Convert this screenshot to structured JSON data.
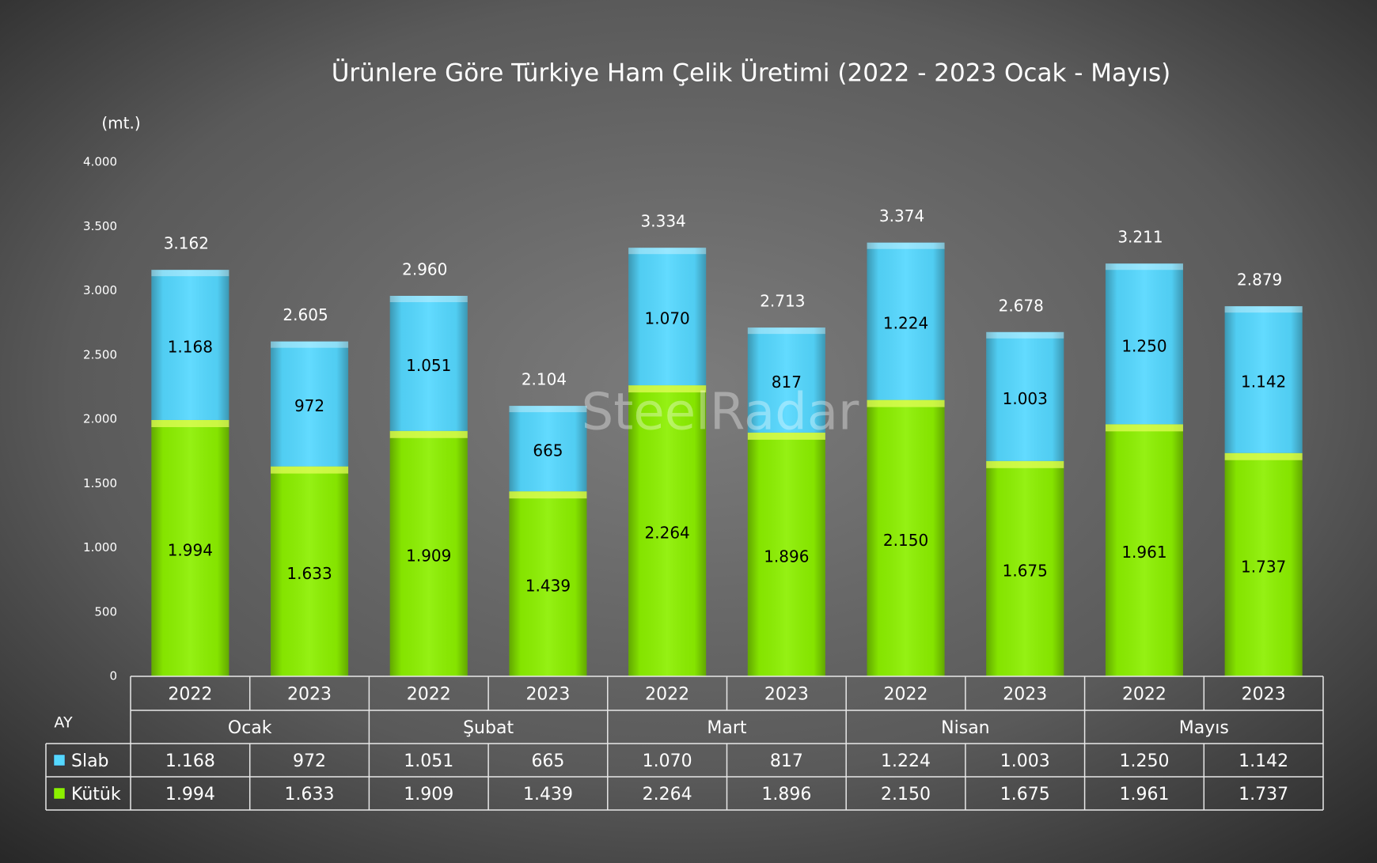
{
  "chart_data": {
    "type": "stacked_bar",
    "title": "Ürünlere Göre Türkiye Ham Çelik Üretimi (2022 - 2023 Ocak - Mayıs)",
    "y_label": "(mt.)",
    "watermark": "SteelRadar",
    "table_header": "AY",
    "categories": [
      "2022",
      "2023",
      "2022",
      "2023",
      "2022",
      "2023",
      "2022",
      "2023",
      "2022",
      "2023"
    ],
    "groups": [
      "Ocak",
      "Şubat",
      "Mart",
      "Nisan",
      "Mayıs"
    ],
    "series": [
      {
        "name": "Slab",
        "color": "#55d8ff",
        "values": [
          1168,
          972,
          1051,
          665,
          1070,
          817,
          1224,
          1003,
          1250,
          1142
        ],
        "value_labels": [
          "1.168",
          "972",
          "1.051",
          "665",
          "1.070",
          "817",
          "1.224",
          "1.003",
          "1.250",
          "1.142"
        ]
      },
      {
        "name": "Kütük",
        "color": "#8cf000",
        "values": [
          1994,
          1633,
          1909,
          1439,
          2264,
          1896,
          2150,
          1675,
          1961,
          1737
        ],
        "value_labels": [
          "1.994",
          "1.633",
          "1.909",
          "1.439",
          "2.264",
          "1.896",
          "2.150",
          "1.675",
          "1.961",
          "1.737"
        ]
      }
    ],
    "totals": [
      {
        "value": 3162,
        "label": "3.162"
      },
      {
        "value": 2605,
        "label": "2.605"
      },
      {
        "value": 2960,
        "label": "2.960"
      },
      {
        "value": 2104,
        "label": "2.104"
      },
      {
        "value": 3334,
        "label": "3.334"
      },
      {
        "value": 2713,
        "label": "2.713"
      },
      {
        "value": 3374,
        "label": "3.374"
      },
      {
        "value": 2678,
        "label": "2.678"
      },
      {
        "value": 3211,
        "label": "3.211"
      },
      {
        "value": 2879,
        "label": "2.879"
      }
    ],
    "ylim": [
      0,
      4000
    ],
    "yticks": [
      0,
      500,
      {
        "value": 1000,
        "label": "1.000"
      },
      {
        "value": 1500,
        "label": "1.500"
      },
      {
        "value": 2000,
        "label": "2.000"
      },
      {
        "value": 2500,
        "label": "2.500"
      },
      {
        "value": 3000,
        "label": "3.000"
      },
      {
        "value": 3500,
        "label": "3.500"
      },
      {
        "value": 4000,
        "label": "4.000"
      }
    ]
  }
}
